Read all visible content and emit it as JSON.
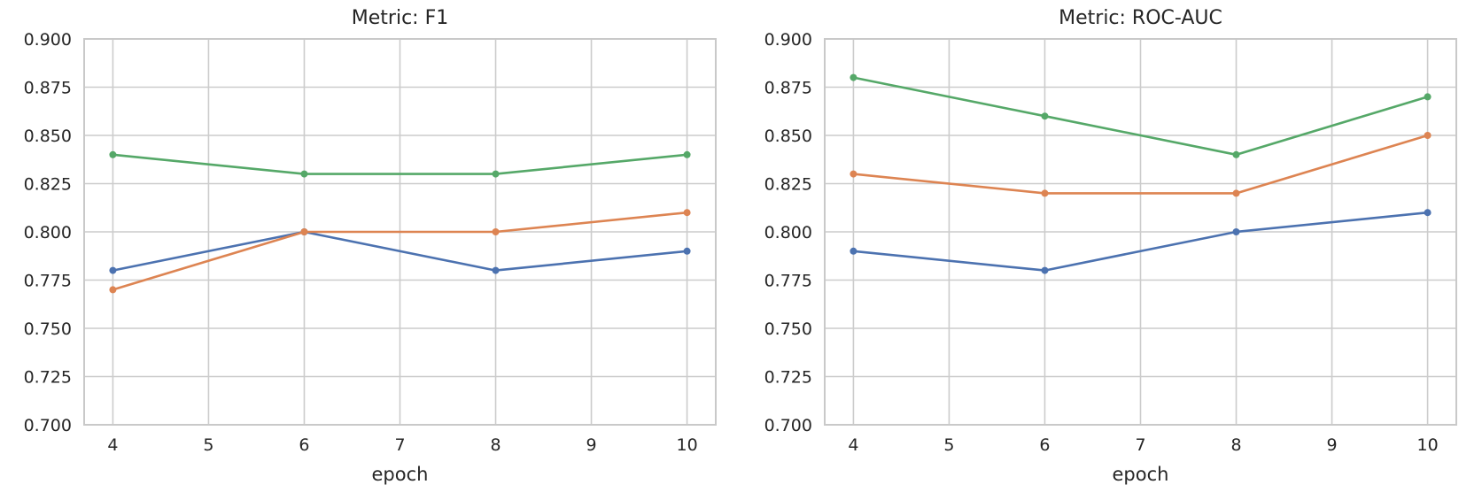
{
  "style": {
    "background_color": "#ffffff",
    "grid_color": "#cccccc",
    "spine_color": "#c9c9c9",
    "text_color": "#262626"
  },
  "chart_data": [
    {
      "type": "line",
      "title": "Metric: F1",
      "xlabel": "epoch",
      "ylabel": "",
      "x": [
        4,
        6,
        8,
        10
      ],
      "xticks": [
        4,
        5,
        6,
        7,
        8,
        9,
        10
      ],
      "xtick_labels": [
        "4",
        "5",
        "6",
        "7",
        "8",
        "9",
        "10"
      ],
      "yticks": [
        0.7,
        0.725,
        0.75,
        0.775,
        0.8,
        0.825,
        0.85,
        0.875,
        0.9
      ],
      "ytick_labels": [
        "0.700",
        "0.725",
        "0.750",
        "0.775",
        "0.800",
        "0.825",
        "0.850",
        "0.875",
        "0.900"
      ],
      "xlim": [
        3.7,
        10.3
      ],
      "ylim": [
        0.7,
        0.9
      ],
      "grid": true,
      "legend_position": "none",
      "series": [
        {
          "name": "blue",
          "color": "#4C72B0",
          "values": [
            0.78,
            0.8,
            0.78,
            0.79
          ]
        },
        {
          "name": "orange",
          "color": "#DD8452",
          "values": [
            0.77,
            0.8,
            0.8,
            0.81
          ]
        },
        {
          "name": "green",
          "color": "#55A868",
          "values": [
            0.84,
            0.83,
            0.83,
            0.84
          ]
        }
      ]
    },
    {
      "type": "line",
      "title": "Metric: ROC-AUC",
      "xlabel": "epoch",
      "ylabel": "",
      "x": [
        4,
        6,
        8,
        10
      ],
      "xticks": [
        4,
        5,
        6,
        7,
        8,
        9,
        10
      ],
      "xtick_labels": [
        "4",
        "5",
        "6",
        "7",
        "8",
        "9",
        "10"
      ],
      "yticks": [
        0.7,
        0.725,
        0.75,
        0.775,
        0.8,
        0.825,
        0.85,
        0.875,
        0.9
      ],
      "ytick_labels": [
        "0.700",
        "0.725",
        "0.750",
        "0.775",
        "0.800",
        "0.825",
        "0.850",
        "0.875",
        "0.900"
      ],
      "xlim": [
        3.7,
        10.3
      ],
      "ylim": [
        0.7,
        0.9
      ],
      "grid": true,
      "legend_position": "none",
      "series": [
        {
          "name": "blue",
          "color": "#4C72B0",
          "values": [
            0.79,
            0.78,
            0.8,
            0.81
          ]
        },
        {
          "name": "orange",
          "color": "#DD8452",
          "values": [
            0.83,
            0.82,
            0.82,
            0.85
          ]
        },
        {
          "name": "green",
          "color": "#55A868",
          "values": [
            0.88,
            0.86,
            0.84,
            0.87
          ]
        }
      ]
    }
  ]
}
